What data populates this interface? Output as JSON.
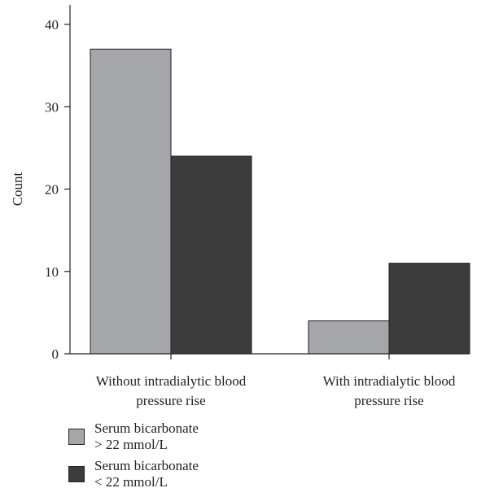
{
  "chart_data": {
    "type": "bar",
    "ylabel": "Count",
    "ylim": [
      0,
      40
    ],
    "yticks": [
      0,
      10,
      20,
      30,
      40
    ],
    "categories": [
      [
        "Without intradialytic blood",
        "pressure rise"
      ],
      [
        "With intradialytic blood",
        "pressure rise"
      ]
    ],
    "series": [
      {
        "name": "Serum bicarbonate > 22 mmol/L",
        "name_lines": [
          "Serum bicarbonate",
          "> 22 mmol/L"
        ],
        "color": "#a5a6aa",
        "values": [
          37,
          4
        ]
      },
      {
        "name": "Serum bicarbonate < 22 mmol/L",
        "name_lines": [
          "Serum bicarbonate",
          "< 22 mmol/L"
        ],
        "color": "#3c3c3c",
        "values": [
          24,
          11
        ]
      }
    ],
    "legend_position": "bottom-left",
    "grid": false
  }
}
